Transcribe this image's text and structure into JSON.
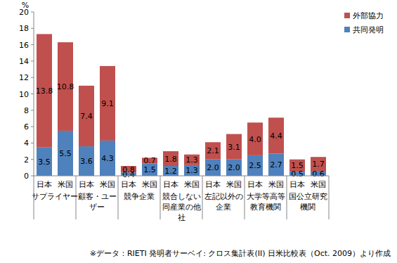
{
  "chart_data": {
    "type": "bar",
    "stacked": true,
    "data_labels": true,
    "grid": false,
    "legend": "upper right",
    "ylabel": "%",
    "ylim": [
      0,
      20
    ],
    "yticks": [
      0,
      2,
      4,
      6,
      8,
      10,
      12,
      14,
      16,
      18,
      20
    ],
    "categories": [
      "日本",
      "米国",
      "日本",
      "米国",
      "日本",
      "米国",
      "日本",
      "米国",
      "日本",
      "米国",
      "日本",
      "米国",
      "日本",
      "米国"
    ],
    "groups": [
      {
        "label": [
          "サプライヤー"
        ]
      },
      {
        "label": [
          "顧客・ユー",
          "ザー"
        ]
      },
      {
        "label": [
          "競争企業"
        ]
      },
      {
        "label": [
          "競合しない",
          "同産業の他",
          "社"
        ]
      },
      {
        "label": [
          "左記以外の",
          "企業"
        ]
      },
      {
        "label": [
          "大学等高等",
          "教育機関"
        ]
      },
      {
        "label": [
          "国公立研究",
          "機関"
        ]
      }
    ],
    "series": [
      {
        "name": "共同発明",
        "color": "#4f81bd",
        "values": [
          3.5,
          5.5,
          3.6,
          4.3,
          0.4,
          1.5,
          1.2,
          1.3,
          2.0,
          2.0,
          2.5,
          2.7,
          0.5,
          0.6
        ],
        "value_labels": [
          "3.5",
          "5.5",
          "3.6",
          "4.3",
          "0.4",
          "1.5",
          "1.2",
          "1.3",
          "2.0",
          "2.0",
          "2.5",
          "2.7",
          "0.5",
          "0.6"
        ]
      },
      {
        "name": "外部協力",
        "color": "#c0504d",
        "values": [
          13.8,
          10.8,
          7.4,
          9.1,
          0.8,
          0.7,
          1.8,
          1.3,
          2.1,
          3.1,
          4.0,
          4.4,
          1.5,
          1.7
        ],
        "value_labels": [
          "13.8",
          "10.8",
          "7.4",
          "9.1",
          "0.8",
          "0.7",
          "1.8",
          "1.3",
          "2.1",
          "3.1",
          "4.0",
          "4.4",
          "1.5",
          "1.7"
        ]
      }
    ],
    "annotations": [
      "※データ：RIETI 発明者サーベイ: クロス集計表(II) 日米比較表（Oct. 2009）より作成"
    ]
  }
}
